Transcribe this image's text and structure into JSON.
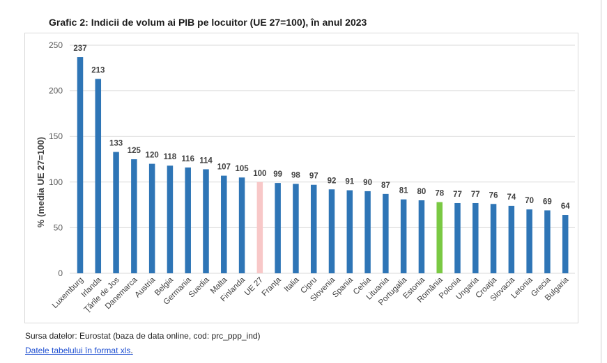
{
  "header": {
    "title": "Grafic 2: Indicii de volum ai PIB pe locuitor  (UE 27=100), în anul 2023"
  },
  "chart_data": {
    "type": "bar",
    "title": "Grafic 2: Indicii de volum ai PIB pe locuitor  (UE 27=100), în anul 2023",
    "xlabel": "",
    "ylabel": "% (media UE 27=100)",
    "ylim": [
      0,
      250
    ],
    "yticks": [
      0,
      50,
      100,
      150,
      200,
      250
    ],
    "grid": true,
    "legend": "none",
    "categories": [
      "Luxemburg",
      "Irlanda",
      "Ţările de Jos",
      "Danemarca",
      "Austria",
      "Belgia",
      "Germania",
      "Suedia",
      "Malta",
      "Finlanda",
      "UE 27",
      "Franţa",
      "Italia",
      "Cipru",
      "Slovenia",
      "Spania",
      "Cehia",
      "Lituania",
      "Portugalia",
      "Estonia",
      "România",
      "Polonia",
      "Ungaria",
      "Croaţia",
      "Slovacia",
      "Letonia",
      "Grecia",
      "Bulgaria"
    ],
    "values": [
      237,
      213,
      133,
      125,
      120,
      118,
      116,
      114,
      107,
      105,
      100,
      99,
      98,
      97,
      92,
      91,
      90,
      87,
      81,
      80,
      78,
      77,
      77,
      76,
      74,
      70,
      69,
      64
    ],
    "colors": {
      "default": "#2e75b6",
      "UE 27": "#f8c8c8",
      "România": "#7ac943"
    }
  },
  "footer": {
    "source": "Sursa datelor: Eurostat (baza de data online, cod: prc_ppp_ind)",
    "link_label": "Datele tabelului în format xls",
    "link_suffix": "."
  }
}
